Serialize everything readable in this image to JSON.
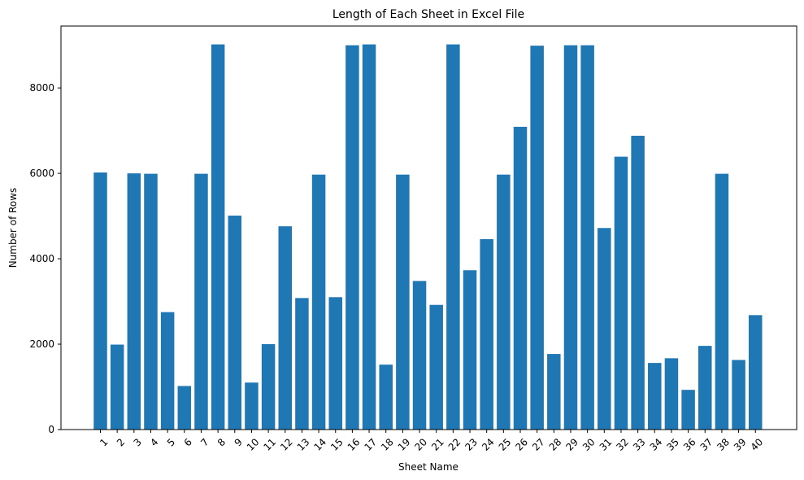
{
  "chart_data": {
    "type": "bar",
    "title": "Length of Each Sheet in Excel File",
    "xlabel": "Sheet Name",
    "ylabel": "Number of Rows",
    "ylim": [
      0,
      9450
    ],
    "yticks": [
      0,
      2000,
      4000,
      6000,
      8000
    ],
    "grid": false,
    "bar_color": "#1f77b4",
    "categories": [
      "1",
      "2",
      "3",
      "4",
      "5",
      "6",
      "7",
      "8",
      "9",
      "10",
      "11",
      "12",
      "13",
      "14",
      "15",
      "16",
      "17",
      "18",
      "19",
      "20",
      "21",
      "22",
      "23",
      "24",
      "25",
      "26",
      "27",
      "28",
      "29",
      "30",
      "31",
      "32",
      "33",
      "34",
      "35",
      "36",
      "37",
      "38",
      "39",
      "40"
    ],
    "values": [
      6020,
      1990,
      6000,
      5990,
      2750,
      1020,
      5990,
      9020,
      5010,
      1100,
      2000,
      4760,
      3080,
      5970,
      3100,
      9000,
      9020,
      1520,
      5970,
      3480,
      2920,
      9020,
      3730,
      4460,
      5970,
      7090,
      8990,
      1770,
      9000,
      9000,
      4720,
      6390,
      6880,
      1560,
      1670,
      930,
      1960,
      5990,
      1630,
      2680
    ]
  }
}
